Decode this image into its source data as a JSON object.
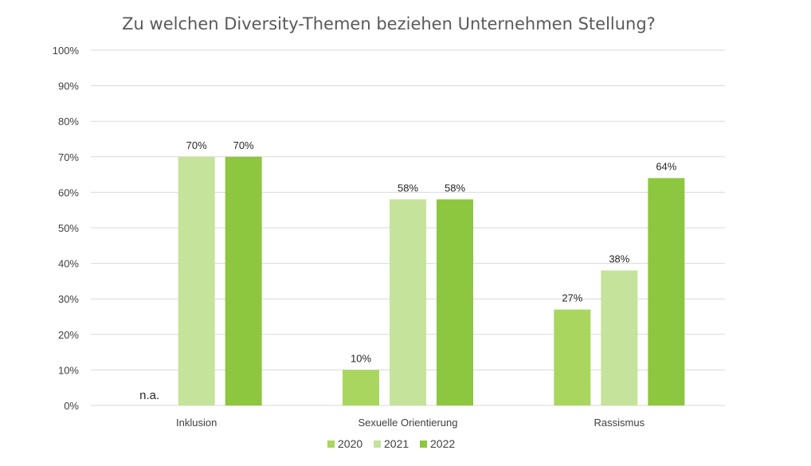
{
  "chart_data": {
    "type": "bar",
    "title": "Zu welchen Diversity-Themen beziehen Unternehmen Stellung?",
    "categories": [
      "Inklusion",
      "Sexuelle Orientierung",
      "Rassismus"
    ],
    "series": [
      {
        "name": "2020",
        "color": "#a9d65f",
        "values": [
          null,
          10,
          27
        ],
        "labels": [
          "n.a.",
          "10%",
          "27%"
        ]
      },
      {
        "name": "2021",
        "color": "#c5e39a",
        "values": [
          70,
          58,
          38
        ],
        "labels": [
          "70%",
          "58%",
          "38%"
        ]
      },
      {
        "name": "2022",
        "color": "#8dc63f",
        "values": [
          70,
          58,
          64
        ],
        "labels": [
          "70%",
          "58%",
          "64%"
        ]
      }
    ],
    "ylim": [
      0,
      100
    ],
    "yticks": [
      "0%",
      "10%",
      "20%",
      "30%",
      "40%",
      "50%",
      "60%",
      "70%",
      "80%",
      "90%",
      "100%"
    ],
    "grid": true,
    "legend_position": "bottom"
  }
}
